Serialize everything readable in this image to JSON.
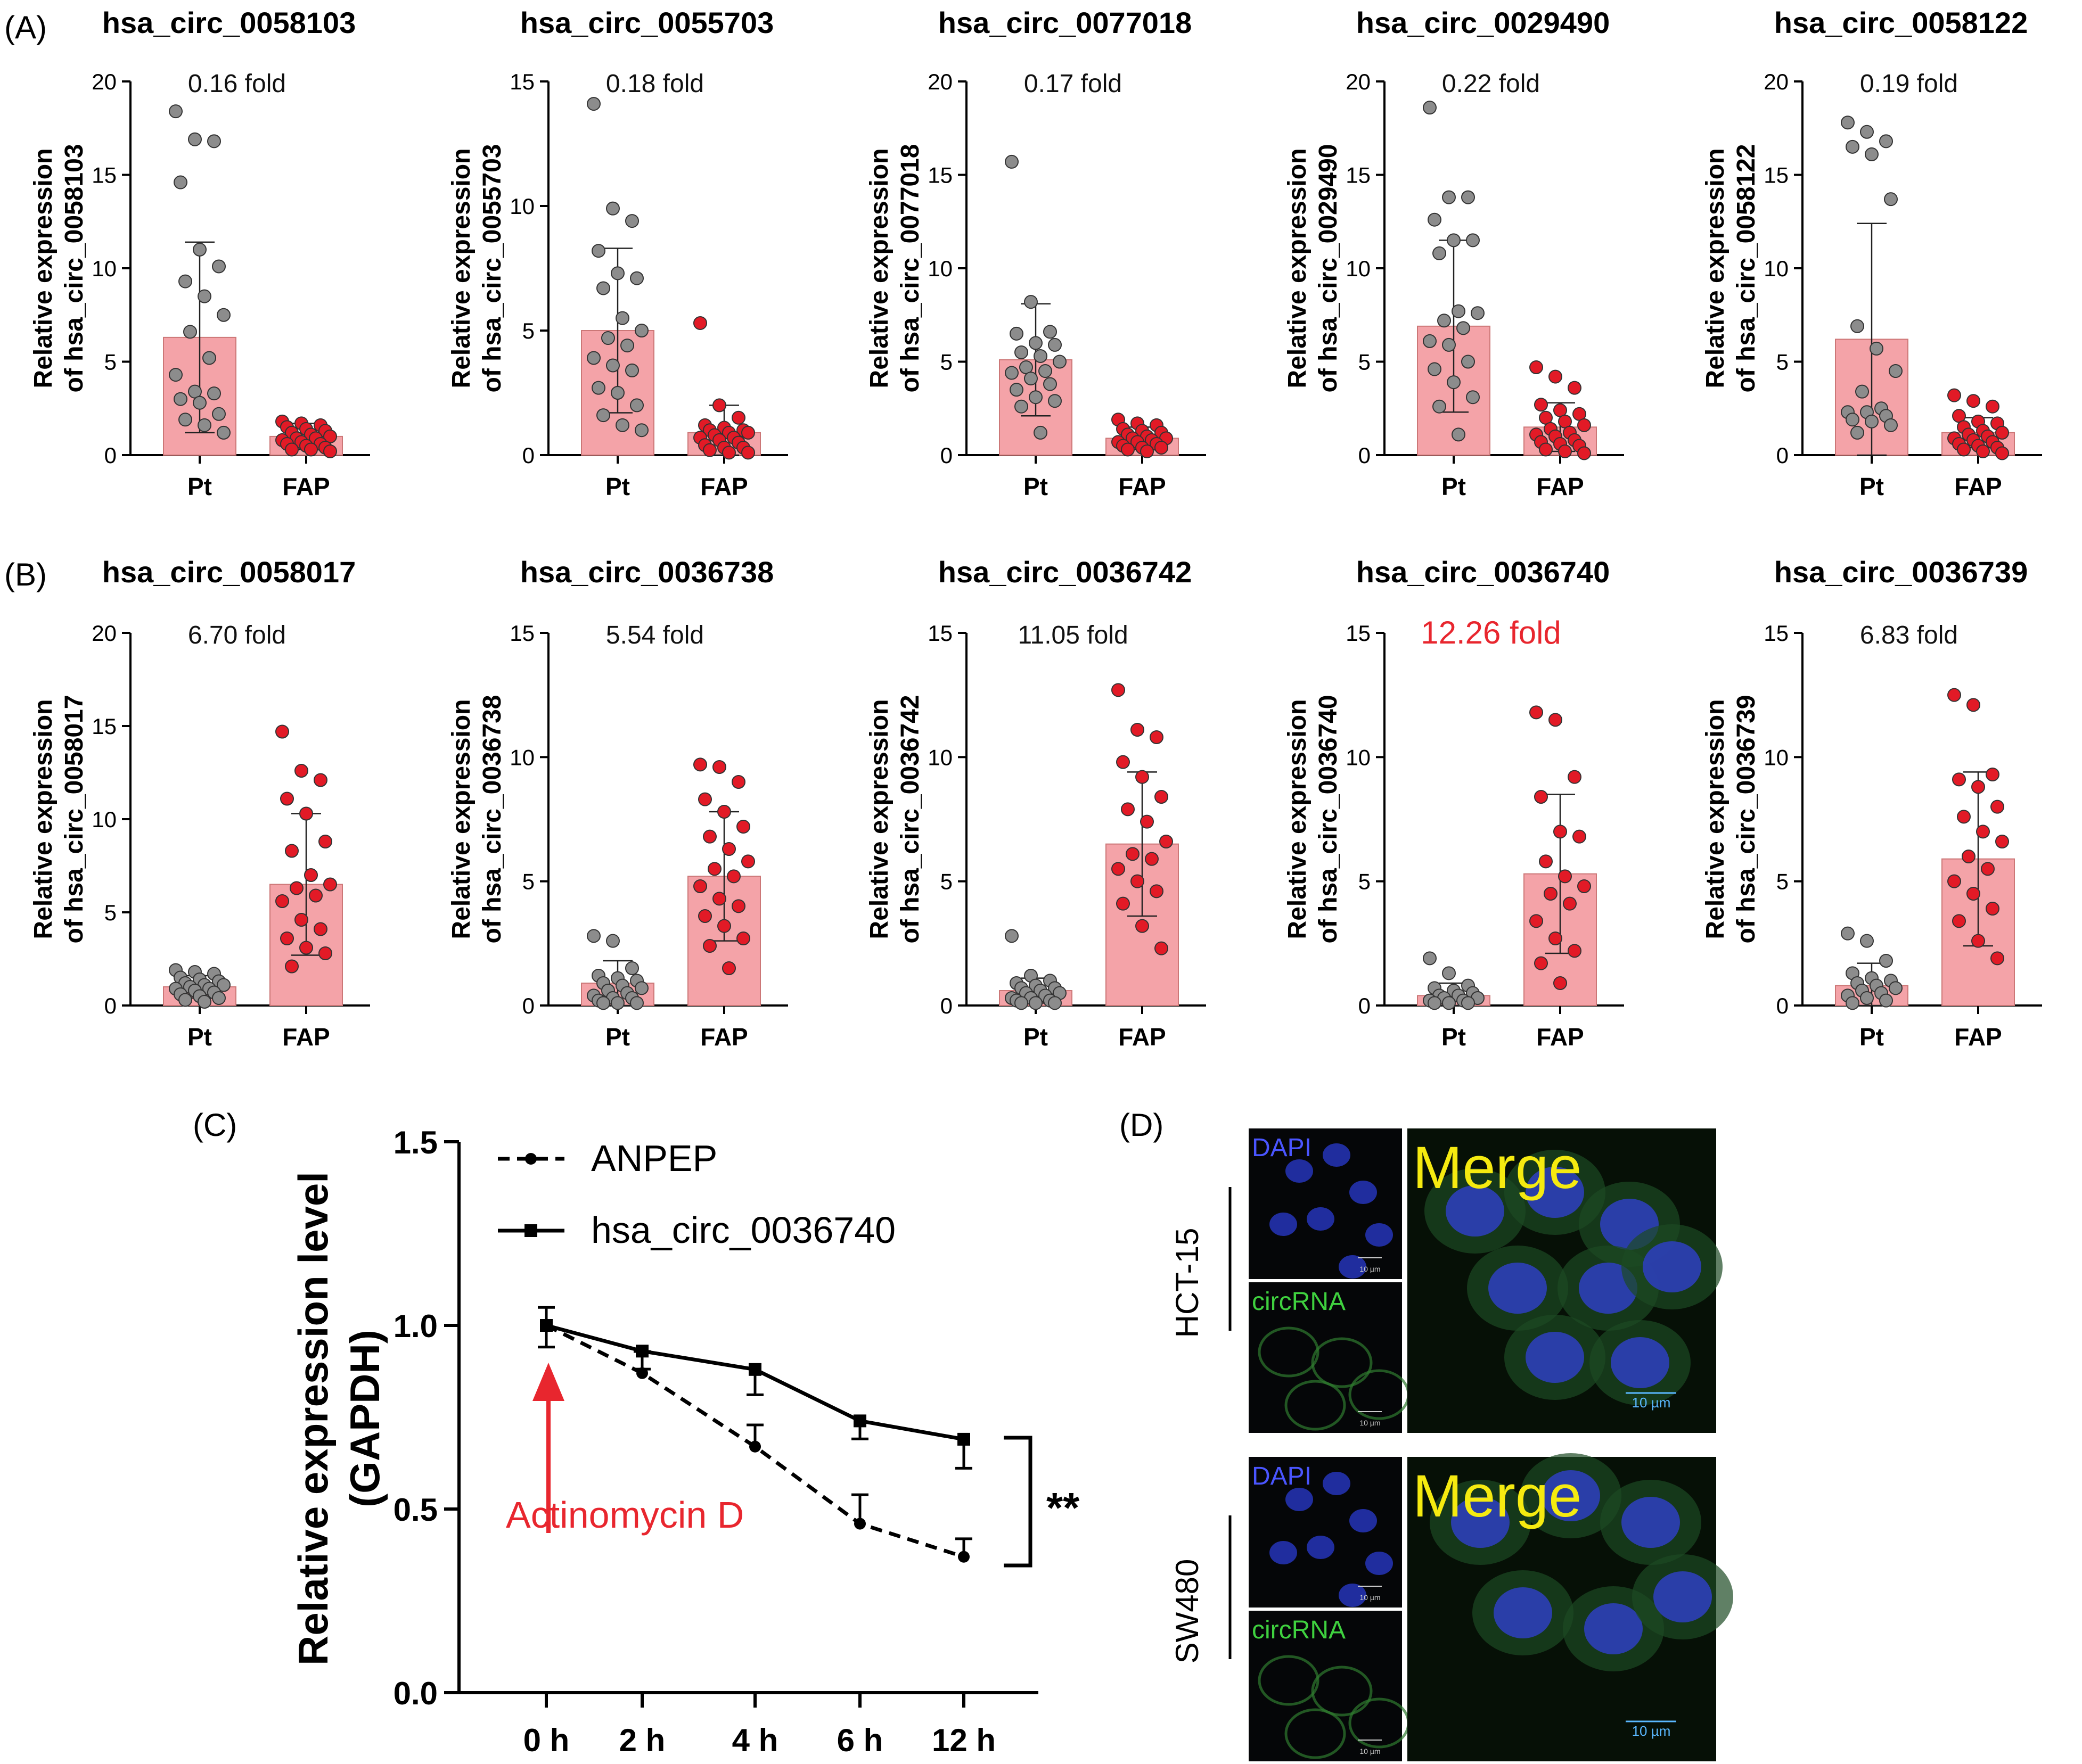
{
  "panels": {
    "A": {
      "label": "(A)"
    },
    "B": {
      "label": "(B)"
    },
    "C": {
      "label": "(C)"
    },
    "D": {
      "label": "(D)"
    }
  },
  "colors": {
    "pt_bar": "#f4a3a8",
    "pt_dot": "#8c8c8c",
    "fap_dot": "#e21a26",
    "highlight": "#e8262e",
    "dapi_text": "#4a55ff",
    "circ_text": "#3fd13f",
    "merge_text": "#f5ea10",
    "scale_text": "#5ab8ff"
  },
  "chart_data": [
    {
      "panel": "A",
      "type": "bar",
      "title": "hsa_circ_0058103",
      "fold": "0.16 fold",
      "ylabel": [
        "Relative expression",
        "of hsa_circ_0058103"
      ],
      "ylim": [
        0,
        20
      ],
      "yticks": [
        "0",
        "5",
        "10",
        "15",
        "20"
      ],
      "categories": [
        "Pt",
        "FAP"
      ],
      "means": [
        6.3,
        1.0
      ],
      "sd": [
        5.1,
        0.7
      ],
      "points": [
        [
          18.4,
          16.9,
          16.8,
          14.6,
          11.0,
          10.1,
          9.3,
          8.5,
          7.5,
          6.6,
          5.2,
          4.3,
          3.4,
          3.3,
          3.0,
          2.8,
          2.2,
          1.9,
          1.6,
          1.2
        ],
        [
          1.8,
          1.7,
          1.6,
          1.5,
          1.4,
          1.3,
          1.2,
          1.1,
          1.0,
          0.9,
          0.9,
          0.8,
          0.7,
          0.6,
          0.6,
          0.5,
          0.4,
          0.3,
          0.3,
          0.2
        ]
      ]
    },
    {
      "panel": "A",
      "type": "bar",
      "title": "hsa_circ_0055703",
      "fold": "0.18 fold",
      "ylabel": [
        "Relative expression",
        "of hsa_circ_0055703"
      ],
      "ylim": [
        0,
        15
      ],
      "yticks": [
        "0",
        "5",
        "10",
        "15"
      ],
      "categories": [
        "Pt",
        "FAP"
      ],
      "means": [
        5.0,
        0.9
      ],
      "sd": [
        3.3,
        1.1
      ],
      "points": [
        [
          14.1,
          9.9,
          9.4,
          8.2,
          7.3,
          7.1,
          6.7,
          5.5,
          5.0,
          4.7,
          4.4,
          3.9,
          3.6,
          3.4,
          2.7,
          2.5,
          2.0,
          1.6,
          1.2,
          1.0
        ],
        [
          5.3,
          2.0,
          1.5,
          1.2,
          1.1,
          1.0,
          1.0,
          0.9,
          0.9,
          0.8,
          0.7,
          0.7,
          0.6,
          0.5,
          0.4,
          0.3,
          0.3,
          0.2,
          0.1,
          0.1
        ]
      ]
    },
    {
      "panel": "A",
      "type": "bar",
      "title": "hsa_circ_0077018",
      "fold": "0.17 fold",
      "ylabel": [
        "Relative expression",
        "of hsa_circ_0077018"
      ],
      "ylim": [
        0,
        20
      ],
      "yticks": [
        "0",
        "5",
        "10",
        "15",
        "20"
      ],
      "categories": [
        "Pt",
        "FAP"
      ],
      "means": [
        5.1,
        0.9
      ],
      "sd": [
        3.0,
        0.6
      ],
      "points": [
        [
          15.7,
          8.2,
          6.6,
          6.5,
          6.0,
          5.9,
          5.5,
          5.3,
          5.0,
          4.7,
          4.5,
          4.4,
          4.1,
          3.8,
          3.5,
          3.1,
          2.9,
          2.6,
          1.2
        ],
        [
          1.9,
          1.7,
          1.6,
          1.4,
          1.3,
          1.2,
          1.1,
          1.0,
          0.9,
          0.9,
          0.8,
          0.7,
          0.7,
          0.6,
          0.5,
          0.4,
          0.4,
          0.3,
          0.2
        ]
      ]
    },
    {
      "panel": "A",
      "type": "bar",
      "title": "hsa_circ_0029490",
      "fold": "0.22 fold",
      "ylabel": [
        "Relative expression",
        "of hsa_circ_0029490"
      ],
      "ylim": [
        0,
        20
      ],
      "yticks": [
        "0",
        "5",
        "10",
        "15",
        "20"
      ],
      "categories": [
        "Pt",
        "FAP"
      ],
      "means": [
        6.9,
        1.5
      ],
      "sd": [
        4.6,
        1.3
      ],
      "points": [
        [
          18.6,
          13.8,
          13.8,
          12.6,
          11.5,
          11.5,
          10.8,
          7.7,
          7.6,
          7.2,
          6.8,
          6.1,
          5.9,
          5.0,
          4.6,
          3.9,
          3.1,
          2.6,
          1.1
        ],
        [
          4.7,
          4.2,
          3.6,
          2.7,
          2.4,
          2.2,
          2.0,
          1.8,
          1.6,
          1.4,
          1.2,
          1.1,
          1.0,
          0.8,
          0.7,
          0.6,
          0.5,
          0.3,
          0.2,
          0.1
        ]
      ]
    },
    {
      "panel": "A",
      "type": "bar",
      "title": "hsa_circ_0058122",
      "fold": "0.19 fold",
      "ylabel": [
        "Relative expression",
        "of hsa_circ_0058122"
      ],
      "ylim": [
        0,
        20
      ],
      "yticks": [
        "0",
        "5",
        "10",
        "15",
        "20"
      ],
      "categories": [
        "Pt",
        "FAP"
      ],
      "means": [
        6.2,
        1.2
      ],
      "sd": [
        6.2,
        0.8
      ],
      "points": [
        [
          17.8,
          17.3,
          16.8,
          16.5,
          16.1,
          13.7,
          6.9,
          5.7,
          4.5,
          3.4,
          2.5,
          2.3,
          2.3,
          2.1,
          1.9,
          1.8,
          1.6,
          1.2
        ],
        [
          3.2,
          2.9,
          2.6,
          2.1,
          1.8,
          1.7,
          1.5,
          1.3,
          1.2,
          1.1,
          1.0,
          0.9,
          0.8,
          0.7,
          0.6,
          0.5,
          0.4,
          0.3,
          0.2,
          0.1
        ]
      ]
    },
    {
      "panel": "B",
      "type": "bar",
      "title": "hsa_circ_0058017",
      "fold": "6.70 fold",
      "ylabel": [
        "Relative expression",
        "of hsa_circ_0058017"
      ],
      "ylim": [
        0,
        20
      ],
      "yticks": [
        "0",
        "5",
        "10",
        "15",
        "20"
      ],
      "categories": [
        "Pt",
        "FAP"
      ],
      "means": [
        1.0,
        6.5
      ],
      "sd": [
        0.6,
        3.8
      ],
      "points": [
        [
          1.9,
          1.8,
          1.7,
          1.5,
          1.4,
          1.3,
          1.2,
          1.1,
          1.1,
          1.0,
          0.9,
          0.9,
          0.8,
          0.7,
          0.6,
          0.5,
          0.4,
          0.3,
          0.2
        ],
        [
          14.7,
          12.6,
          12.1,
          11.1,
          10.3,
          8.8,
          8.3,
          7.0,
          6.5,
          6.3,
          5.9,
          5.6,
          4.6,
          4.1,
          3.6,
          3.1,
          2.8,
          2.1
        ]
      ]
    },
    {
      "panel": "B",
      "type": "bar",
      "title": "hsa_circ_0036738",
      "fold": "5.54 fold",
      "ylabel": [
        "Relative expression",
        "of hsa_circ_0036738"
      ],
      "ylim": [
        0,
        15
      ],
      "yticks": [
        "0",
        "5",
        "10",
        "15"
      ],
      "categories": [
        "Pt",
        "FAP"
      ],
      "means": [
        0.9,
        5.2
      ],
      "sd": [
        0.9,
        2.6
      ],
      "points": [
        [
          2.8,
          2.6,
          1.5,
          1.2,
          1.1,
          1.0,
          0.9,
          0.8,
          0.7,
          0.6,
          0.5,
          0.4,
          0.3,
          0.3,
          0.2,
          0.1,
          0.1,
          0.1
        ],
        [
          9.7,
          9.6,
          9.0,
          8.3,
          7.8,
          7.2,
          6.8,
          6.3,
          5.8,
          5.5,
          5.2,
          4.8,
          4.3,
          4.0,
          3.6,
          3.2,
          2.7,
          2.4,
          1.5
        ]
      ]
    },
    {
      "panel": "B",
      "type": "bar",
      "title": "hsa_circ_0036742",
      "fold": "11.05 fold",
      "ylabel": [
        "Relative expression",
        "of hsa_circ_0036742"
      ],
      "ylim": [
        0,
        15
      ],
      "yticks": [
        "0",
        "5",
        "10",
        "15"
      ],
      "categories": [
        "Pt",
        "FAP"
      ],
      "means": [
        0.6,
        6.5
      ],
      "sd": [
        0.5,
        2.9
      ],
      "points": [
        [
          2.8,
          1.2,
          1.0,
          0.9,
          0.8,
          0.7,
          0.7,
          0.6,
          0.5,
          0.5,
          0.4,
          0.3,
          0.3,
          0.2,
          0.2,
          0.1,
          0.1,
          0.1
        ],
        [
          12.7,
          11.1,
          10.8,
          9.8,
          9.2,
          8.4,
          7.9,
          7.4,
          6.6,
          6.1,
          5.9,
          5.5,
          5.0,
          4.6,
          4.1,
          3.2,
          2.3
        ]
      ]
    },
    {
      "panel": "B",
      "type": "bar",
      "title": "hsa_circ_0036740",
      "fold": "12.26 fold",
      "fold_highlight": true,
      "ylabel": [
        "Relative expression",
        "of hsa_circ_0036740"
      ],
      "ylim": [
        0,
        15
      ],
      "yticks": [
        "0",
        "5",
        "10",
        "15"
      ],
      "categories": [
        "Pt",
        "FAP"
      ],
      "means": [
        0.4,
        5.3
      ],
      "sd": [
        0.5,
        3.2
      ],
      "points": [
        [
          1.9,
          1.3,
          0.8,
          0.7,
          0.6,
          0.5,
          0.4,
          0.4,
          0.3,
          0.3,
          0.2,
          0.2,
          0.1,
          0.1,
          0.1
        ],
        [
          11.8,
          11.5,
          9.2,
          8.4,
          7.0,
          6.8,
          5.8,
          5.2,
          4.8,
          4.5,
          4.1,
          3.4,
          2.7,
          2.2,
          1.7,
          0.9
        ]
      ]
    },
    {
      "panel": "B",
      "type": "bar",
      "title": "hsa_circ_0036739",
      "fold": "6.83 fold",
      "ylabel": [
        "Relative expression",
        "of hsa_circ_0036739"
      ],
      "ylim": [
        0,
        15
      ],
      "yticks": [
        "0",
        "5",
        "10",
        "15"
      ],
      "categories": [
        "Pt",
        "FAP"
      ],
      "means": [
        0.8,
        5.9
      ],
      "sd": [
        0.9,
        3.5
      ],
      "points": [
        [
          2.9,
          2.6,
          1.8,
          1.3,
          1.1,
          1.0,
          0.9,
          0.8,
          0.7,
          0.6,
          0.5,
          0.4,
          0.3,
          0.2,
          0.1
        ],
        [
          12.5,
          12.1,
          9.3,
          9.1,
          8.8,
          8.0,
          7.6,
          7.0,
          6.6,
          6.0,
          5.5,
          5.0,
          4.5,
          3.9,
          3.4,
          2.6,
          1.9
        ]
      ]
    },
    {
      "panel": "C",
      "type": "line",
      "ylabel": [
        "Relative expression level",
        "(GAPDH)"
      ],
      "ylim": [
        0,
        1.5
      ],
      "yticks": [
        "0.0",
        "0.5",
        "1.0",
        "1.5"
      ],
      "categories": [
        "0 h",
        "2 h",
        "4 h",
        "6 h",
        "12 h"
      ],
      "series": [
        {
          "name": "ANPEP",
          "style": "dashed",
          "values": [
            1.0,
            0.87,
            0.67,
            0.46,
            0.37
          ],
          "err": [
            0.02,
            0.03,
            0.03,
            0.05,
            0.02
          ]
        },
        {
          "name": "hsa_circ_0036740",
          "style": "solid",
          "values": [
            1.0,
            0.93,
            0.88,
            0.74,
            0.69
          ],
          "err": [
            0.03,
            0.02,
            0.04,
            0.02,
            0.05
          ]
        }
      ],
      "annotation": "Actinomycin D",
      "significance": "**"
    }
  ],
  "microscopy": {
    "rows": [
      {
        "cell_line": "HCT-15",
        "small_labels": [
          "DAPI",
          "circRNA"
        ],
        "merge_label": "Merge",
        "scale_small": "10 µm",
        "scale_large": "10 µm"
      },
      {
        "cell_line": "SW480",
        "small_labels": [
          "DAPI",
          "circRNA"
        ],
        "merge_label": "Merge",
        "scale_small": "10 µm",
        "scale_large": "10 µm"
      }
    ]
  }
}
